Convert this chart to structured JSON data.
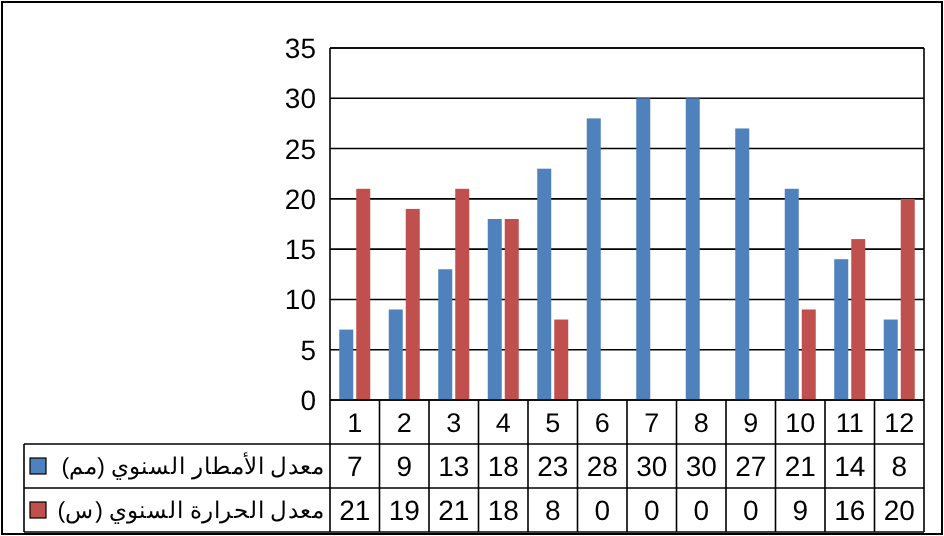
{
  "chart_data": {
    "type": "bar",
    "categories": [
      "1",
      "2",
      "3",
      "4",
      "5",
      "6",
      "7",
      "8",
      "9",
      "10",
      "11",
      "12"
    ],
    "series": [
      {
        "name": "معدل الأمطار السنوي (مم)",
        "color": "#4f81bd",
        "values": [
          7,
          9,
          13,
          18,
          23,
          28,
          30,
          30,
          27,
          21,
          14,
          8
        ]
      },
      {
        "name": "معدل الحرارة السنوي (س)",
        "color": "#c0504d",
        "values": [
          21,
          19,
          21,
          18,
          8,
          0,
          0,
          0,
          0,
          9,
          16,
          20
        ]
      }
    ],
    "ylim": [
      0,
      35
    ],
    "yticks": [
      0,
      5,
      10,
      15,
      20,
      25,
      30,
      35
    ],
    "grid": "y",
    "legend": "bottom",
    "data_labels": true
  }
}
